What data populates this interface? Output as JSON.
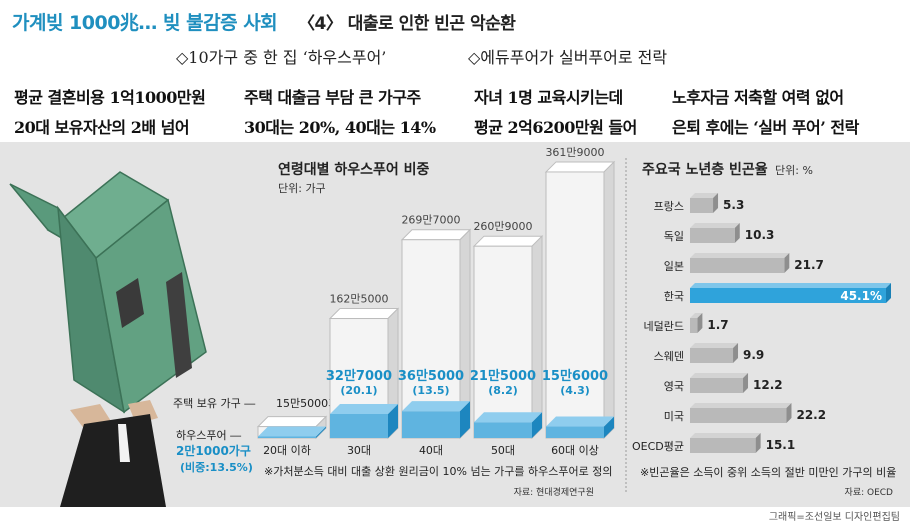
{
  "header": {
    "title_left": "가계빚 1000兆… 빚 불감증 사회",
    "title_right": "〈4〉 대출로 인한 빈곤 악순환",
    "sub_left": "◇10가구 중 한 집 ‘하우스푸어’",
    "sub_right": "◇에듀푸어가 실버푸어로 전락",
    "captions": [
      [
        "평균 결혼비용 1억1000만원",
        "20대 보유자산의 2배 넘어"
      ],
      [
        "주택 대출금 부담 큰 가구주",
        "30대는 20%, 40대는 14%"
      ],
      [
        "자녀 1명 교육시키는데",
        "평균 2억6200만원 들어"
      ],
      [
        "노후자금 저축할 여력 없어",
        "은퇴 후에는 ‘실버 푸어’ 전락"
      ]
    ]
  },
  "colors": {
    "title_blue": "#1f8fbf",
    "value_blue": "#1a8fc6",
    "highlight_bar": "#2fa3db",
    "gray_bar": "#b9b9b9",
    "panel_bg": "#e4e4e4"
  },
  "chart_data": [
    {
      "type": "bar",
      "title": "연령대별 하우스푸어 비중",
      "unit": "단위: 가구",
      "categories": [
        "20대 이하",
        "30대",
        "40대",
        "50대",
        "60대 이상"
      ],
      "series": [
        {
          "name": "주택 보유 가구",
          "values": [
            155000,
            1625000,
            2697000,
            2609000,
            3619000
          ],
          "labels": [
            "15만5000가구",
            "162만5000",
            "269만7000",
            "260만9000",
            "361만9000"
          ]
        },
        {
          "name": "하우스푸어",
          "values": [
            21000,
            327000,
            365000,
            215000,
            156000
          ],
          "labels": [
            "2만1000가구",
            "32만7000",
            "36만5000",
            "21만5000",
            "15만6000"
          ]
        }
      ],
      "shares": [
        "(비중:13.5%)",
        "(20.1)",
        "(13.5)",
        "(8.2)",
        "(4.3)"
      ],
      "legend_own": "주택 보유 가구 ―",
      "legend_poor": "하우스푸어 ―",
      "note": "※가처분소득 대비 대출 상환 원리금이 10% 넘는 가구를 하우스푸어로 정의",
      "source": "자료: 현대경제연구원"
    },
    {
      "type": "bar",
      "orientation": "horizontal",
      "title": "주요국 노년층 빈곤율",
      "unit": "단위: %",
      "categories": [
        "프랑스",
        "독일",
        "일본",
        "한국",
        "네덜란드",
        "스웨덴",
        "영국",
        "미국",
        "OECD평균"
      ],
      "values": [
        5.3,
        10.3,
        21.7,
        45.1,
        1.7,
        9.9,
        12.2,
        22.2,
        15.1
      ],
      "value_labels": [
        "5.3",
        "10.3",
        "21.7",
        "45.1%",
        "1.7",
        "9.9",
        "12.2",
        "22.2",
        "15.1"
      ],
      "highlight": "한국",
      "note": "※빈곤율은 소득이 중위 소득의 절반 미만인 가구의 비율",
      "source": "자료: OECD"
    }
  ],
  "credit": "그래픽=조선일보 디자인편집팀"
}
